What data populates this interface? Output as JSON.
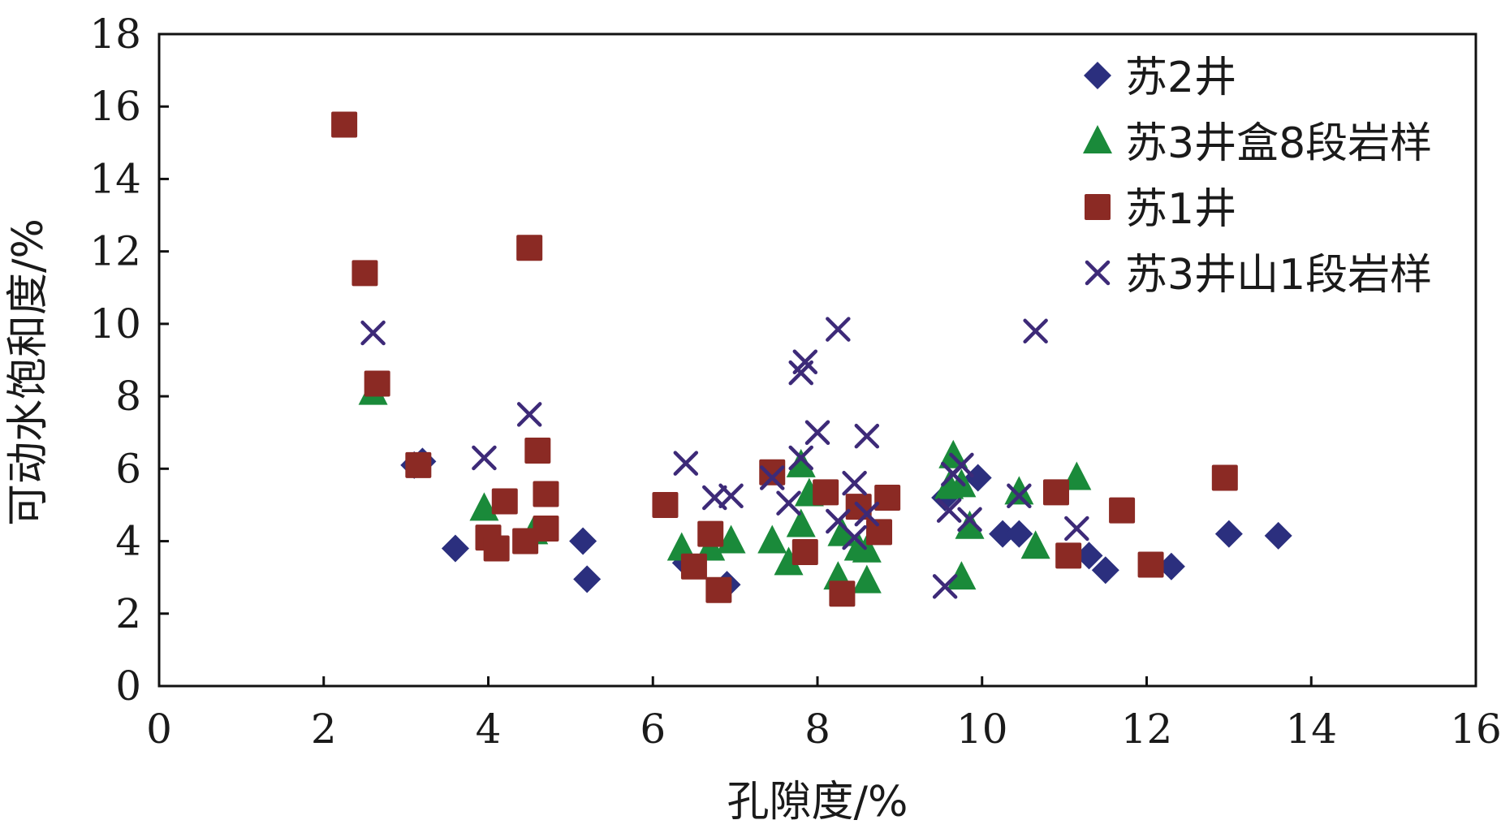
{
  "chart_data": {
    "type": "scatter",
    "xlabel": "孔隙度/%",
    "ylabel": "可动水饱和度/%",
    "xlim": [
      0,
      16
    ],
    "ylim": [
      0,
      18
    ],
    "xticks": [
      0,
      2,
      4,
      6,
      8,
      10,
      12,
      14,
      16
    ],
    "yticks": [
      0,
      2,
      4,
      6,
      8,
      10,
      12,
      14,
      16,
      18
    ],
    "grid": false,
    "legend_position": "top-right",
    "series": [
      {
        "name": "苏2井",
        "marker": "diamond",
        "color": "#2b2f7e",
        "points": [
          [
            3.1,
            6.1
          ],
          [
            3.2,
            6.2
          ],
          [
            3.6,
            3.8
          ],
          [
            5.15,
            4.0
          ],
          [
            5.2,
            2.95
          ],
          [
            6.4,
            3.4
          ],
          [
            6.9,
            2.8
          ],
          [
            9.55,
            5.2
          ],
          [
            9.95,
            5.75
          ],
          [
            10.25,
            4.2
          ],
          [
            10.45,
            4.2
          ],
          [
            11.3,
            3.6
          ],
          [
            11.5,
            3.2
          ],
          [
            12.3,
            3.3
          ],
          [
            13.0,
            4.2
          ],
          [
            13.6,
            4.15
          ]
        ]
      },
      {
        "name": "苏3井盒8段岩样",
        "marker": "triangle",
        "color": "#1a8a3a",
        "points": [
          [
            2.6,
            8.1
          ],
          [
            3.95,
            4.9
          ],
          [
            4.55,
            4.25
          ],
          [
            6.35,
            3.8
          ],
          [
            6.7,
            3.8
          ],
          [
            6.95,
            4.0
          ],
          [
            7.45,
            4.0
          ],
          [
            7.65,
            3.4
          ],
          [
            7.8,
            6.1
          ],
          [
            7.8,
            4.45
          ],
          [
            7.9,
            5.3
          ],
          [
            8.25,
            3.0
          ],
          [
            8.3,
            4.2
          ],
          [
            8.5,
            3.8
          ],
          [
            8.6,
            2.9
          ],
          [
            8.6,
            3.75
          ],
          [
            9.6,
            5.5
          ],
          [
            9.65,
            6.35
          ],
          [
            9.75,
            5.55
          ],
          [
            9.75,
            3.0
          ],
          [
            9.85,
            4.4
          ],
          [
            10.45,
            5.35
          ],
          [
            10.65,
            3.85
          ],
          [
            11.15,
            5.75
          ]
        ]
      },
      {
        "name": "苏1井",
        "marker": "square",
        "color": "#8b2a24",
        "points": [
          [
            2.25,
            15.5
          ],
          [
            2.5,
            11.4
          ],
          [
            2.65,
            8.35
          ],
          [
            3.15,
            6.1
          ],
          [
            4.0,
            4.1
          ],
          [
            4.1,
            3.8
          ],
          [
            4.2,
            5.1
          ],
          [
            4.45,
            4.0
          ],
          [
            4.5,
            12.1
          ],
          [
            4.6,
            6.5
          ],
          [
            4.7,
            4.35
          ],
          [
            4.7,
            5.3
          ],
          [
            6.15,
            5.0
          ],
          [
            6.5,
            3.3
          ],
          [
            6.7,
            4.2
          ],
          [
            6.8,
            2.65
          ],
          [
            7.45,
            5.9
          ],
          [
            7.85,
            3.7
          ],
          [
            8.1,
            5.35
          ],
          [
            8.3,
            2.55
          ],
          [
            8.5,
            4.95
          ],
          [
            8.75,
            4.25
          ],
          [
            8.85,
            5.2
          ],
          [
            10.9,
            5.35
          ],
          [
            11.05,
            3.6
          ],
          [
            11.7,
            4.85
          ],
          [
            12.05,
            3.35
          ],
          [
            12.95,
            5.75
          ]
        ]
      },
      {
        "name": "苏3井山1段岩样",
        "marker": "cross",
        "color": "#3d2a78",
        "points": [
          [
            2.6,
            9.75
          ],
          [
            3.95,
            6.3
          ],
          [
            4.5,
            7.5
          ],
          [
            6.4,
            6.15
          ],
          [
            6.75,
            5.2
          ],
          [
            6.95,
            5.25
          ],
          [
            7.45,
            5.75
          ],
          [
            7.65,
            5.05
          ],
          [
            7.8,
            6.3
          ],
          [
            7.8,
            8.65
          ],
          [
            7.85,
            8.95
          ],
          [
            8.0,
            7.0
          ],
          [
            8.25,
            9.85
          ],
          [
            8.25,
            4.55
          ],
          [
            8.45,
            5.6
          ],
          [
            8.45,
            4.1
          ],
          [
            8.6,
            6.9
          ],
          [
            8.6,
            4.75
          ],
          [
            9.55,
            2.75
          ],
          [
            9.6,
            4.85
          ],
          [
            9.65,
            5.85
          ],
          [
            9.75,
            6.1
          ],
          [
            9.85,
            4.6
          ],
          [
            10.45,
            5.25
          ],
          [
            10.65,
            9.8
          ],
          [
            11.15,
            4.35
          ]
        ]
      }
    ]
  }
}
